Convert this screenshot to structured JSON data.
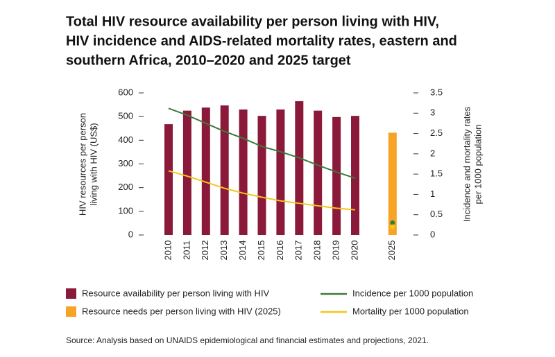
{
  "chart_data": {
    "type": "bar",
    "title": [
      "Total HIV resource availability per person living with HIV,",
      "HIV incidence and AIDS-related mortality rates, eastern and",
      "southern Africa, 2010–2020 and 2025 target"
    ],
    "y_label": [
      "HIV resources per person",
      "living with HIV (US$)"
    ],
    "y2_label": [
      "Incidence and mortality rates",
      "per 1000 population"
    ],
    "categories": [
      "2010",
      "2011",
      "2012",
      "2013",
      "2014",
      "2015",
      "2016",
      "2017",
      "2018",
      "2019",
      "2020",
      "2025"
    ],
    "ylim": [
      0,
      600
    ],
    "yticks": [
      0,
      100,
      200,
      300,
      400,
      500,
      600
    ],
    "y2lim": [
      0,
      3.5
    ],
    "y2ticks": [
      0,
      0.5,
      1,
      1.5,
      2,
      2.5,
      3,
      3.5
    ],
    "series": [
      {
        "name": "Resource availability per person living with HIV",
        "type": "bar",
        "color": "#8b1a3a",
        "values": [
          468,
          525,
          538,
          547,
          530,
          503,
          530,
          565,
          525,
          498,
          503,
          null
        ]
      },
      {
        "name": "Resource needs per person living with HIV (2025)",
        "type": "bar",
        "color": "#f7a326",
        "values": [
          null,
          null,
          null,
          null,
          null,
          null,
          null,
          null,
          null,
          null,
          null,
          432
        ]
      },
      {
        "name": "Incidence per 1000 population",
        "type": "line",
        "axis": "y2",
        "color": "#3d7a3a",
        "values": [
          3.12,
          2.95,
          2.75,
          2.55,
          2.38,
          2.18,
          2.05,
          1.9,
          1.72,
          1.55,
          1.4,
          0.3
        ]
      },
      {
        "name": "Mortality per 1000 population",
        "type": "line",
        "axis": "y2",
        "color": "#f5c518",
        "values": [
          1.58,
          1.45,
          1.3,
          1.15,
          1.03,
          0.93,
          0.84,
          0.78,
          0.72,
          0.66,
          0.62,
          0.2
        ]
      }
    ],
    "source": "Source: Analysis based on UNAIDS epidemiological and financial estimates and projections, 2021."
  }
}
